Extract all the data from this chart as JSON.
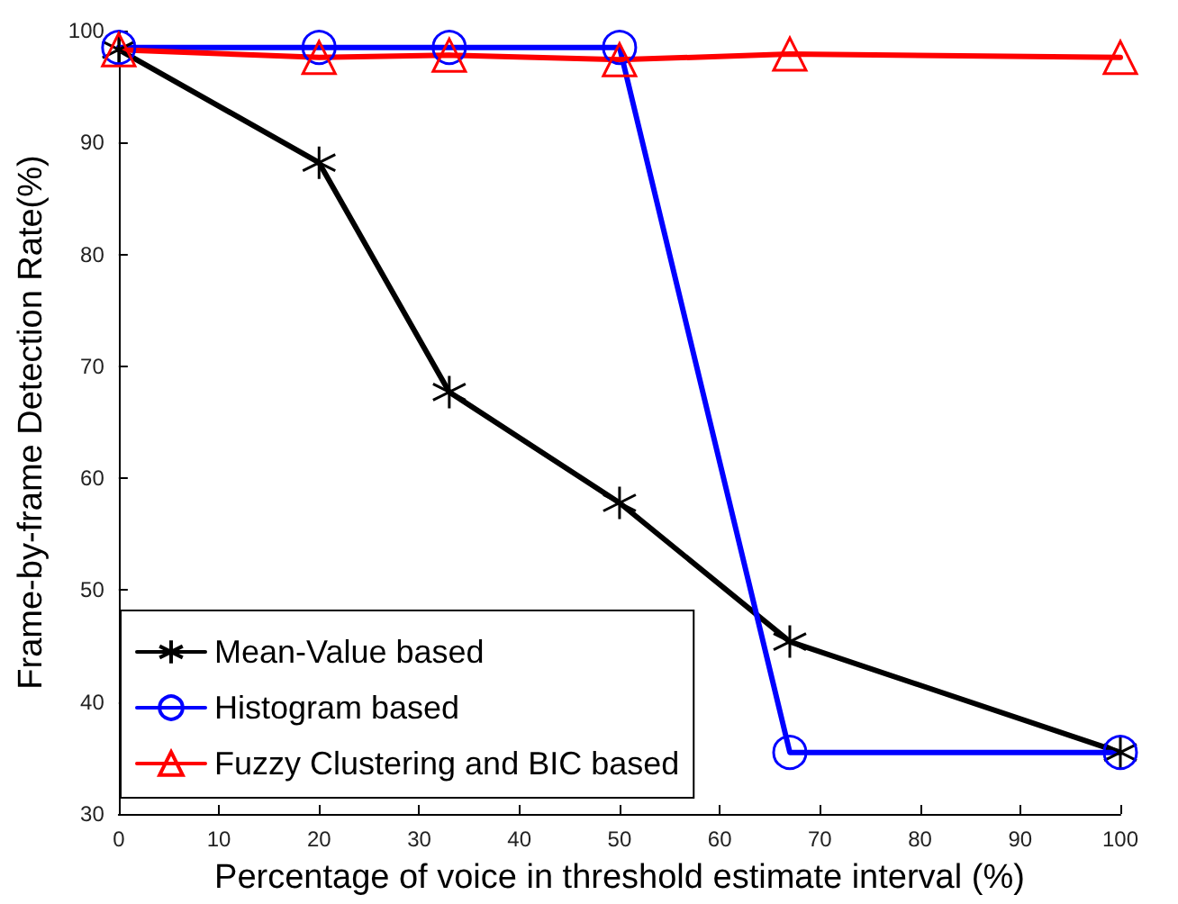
{
  "chart_data": {
    "type": "line",
    "xlabel": "Percentage of voice in threshold estimate interval (%)",
    "ylabel": "Frame-by-frame Detection Rate(%)",
    "x": [
      0,
      20,
      33,
      50,
      67,
      100
    ],
    "series": [
      {
        "name": "Mean-Value based",
        "color": "#000000",
        "marker": "cross",
        "values": [
          98.3,
          88.2,
          67.7,
          57.8,
          45.4,
          35.5
        ]
      },
      {
        "name": "Histogram based",
        "color": "#0000ff",
        "marker": "circle",
        "values": [
          98.5,
          98.5,
          98.5,
          98.5,
          35.5,
          35.5
        ]
      },
      {
        "name": "Fuzzy Clustering and BIC based",
        "color": "#ff0000",
        "marker": "triangle",
        "values": [
          98.3,
          97.6,
          97.8,
          97.4,
          97.9,
          97.6
        ]
      }
    ],
    "xlim": [
      0,
      100
    ],
    "xticks": [
      0,
      10,
      20,
      30,
      40,
      50,
      60,
      70,
      80,
      90,
      100
    ],
    "ylim": [
      30,
      100
    ],
    "yticks": [
      30,
      40,
      50,
      60,
      70,
      80,
      90,
      100
    ],
    "grid": false,
    "legend": "bottom left",
    "line_style": "solid"
  }
}
